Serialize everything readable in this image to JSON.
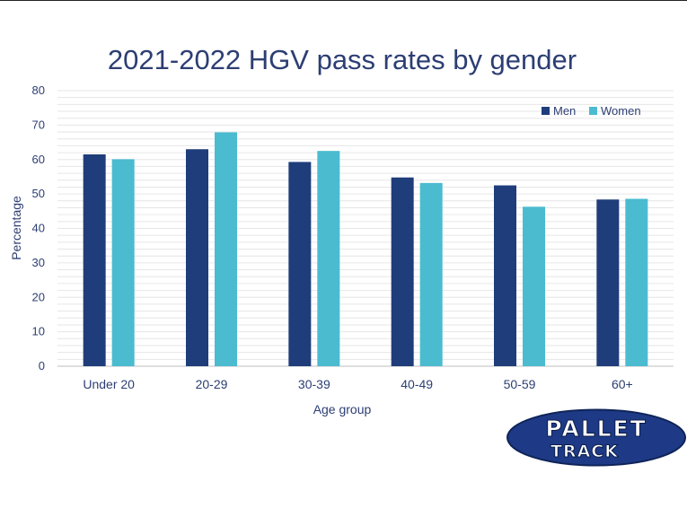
{
  "chart_data": {
    "type": "bar",
    "title": "2021-2022 HGV pass rates by gender",
    "xlabel": "Age group",
    "ylabel": "Percentage",
    "categories": [
      "Under 20",
      "20-29",
      "30-39",
      "40-49",
      "50-59",
      "60+"
    ],
    "series": [
      {
        "name": "Men",
        "color": "#1f3d7a",
        "values": [
          61.5,
          63.0,
          59.3,
          54.8,
          52.5,
          48.4
        ]
      },
      {
        "name": "Women",
        "color": "#4bbbd0",
        "values": [
          60.1,
          67.9,
          62.5,
          53.2,
          46.3,
          48.6
        ]
      }
    ],
    "ylim": [
      0,
      80
    ],
    "yticks": [
      "0",
      "10",
      "20",
      "30",
      "40",
      "50",
      "60",
      "70",
      "80"
    ],
    "grid": true,
    "legend_position": "top-right"
  },
  "logo": {
    "line1": "PALLET",
    "line2": "TRACK"
  }
}
